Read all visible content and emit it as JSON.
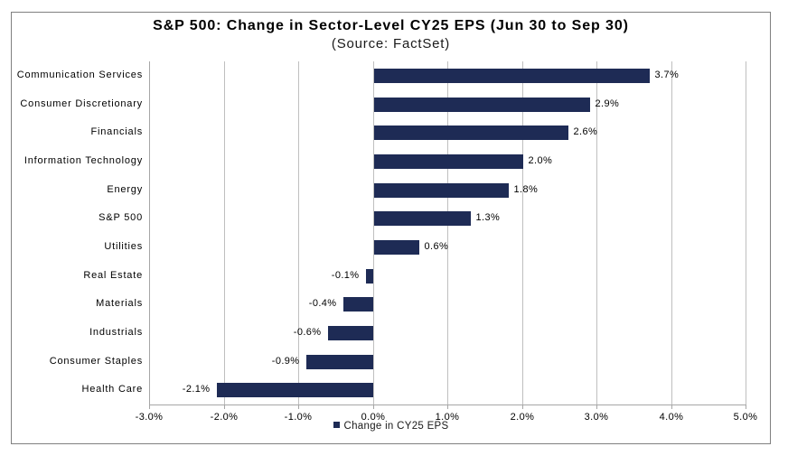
{
  "chart_data": {
    "type": "bar",
    "orientation": "horizontal",
    "title": "S&P 500: Change in Sector-Level CY25 EPS (Jun 30 to Sep 30)",
    "subtitle": "(Source: FactSet)",
    "categories": [
      "Communication Services",
      "Consumer Discretionary",
      "Financials",
      "Information Technology",
      "Energy",
      "S&P 500",
      "Utilities",
      "Real Estate",
      "Materials",
      "Industrials",
      "Consumer Staples",
      "Health Care"
    ],
    "series": [
      {
        "name": "Change in CY25 EPS",
        "values": [
          3.7,
          2.9,
          2.6,
          2.0,
          1.8,
          1.3,
          0.6,
          -0.1,
          -0.4,
          -0.6,
          -0.9,
          -2.1
        ]
      }
    ],
    "value_labels": [
      "3.7%",
      "2.9%",
      "2.6%",
      "2.0%",
      "1.8%",
      "1.3%",
      "0.6%",
      "-0.1%",
      "-0.4%",
      "-0.6%",
      "-0.9%",
      "-2.1%"
    ],
    "xlim": [
      -3.0,
      5.0
    ],
    "x_tick_step": 1.0,
    "x_tick_labels": [
      "-3.0%",
      "-2.0%",
      "-1.0%",
      "0.0%",
      "1.0%",
      "2.0%",
      "3.0%",
      "4.0%",
      "5.0%"
    ],
    "grid": "vertical-gridlines-on",
    "legend": {
      "position": "bottom-center",
      "entries": [
        "Change in CY25 EPS"
      ]
    },
    "colors": {
      "bar": "#1e2b55",
      "gridline": "#bfbfbf",
      "axis_line": "#a6a6a6",
      "frame_border": "#808080",
      "text": "#000000"
    }
  }
}
